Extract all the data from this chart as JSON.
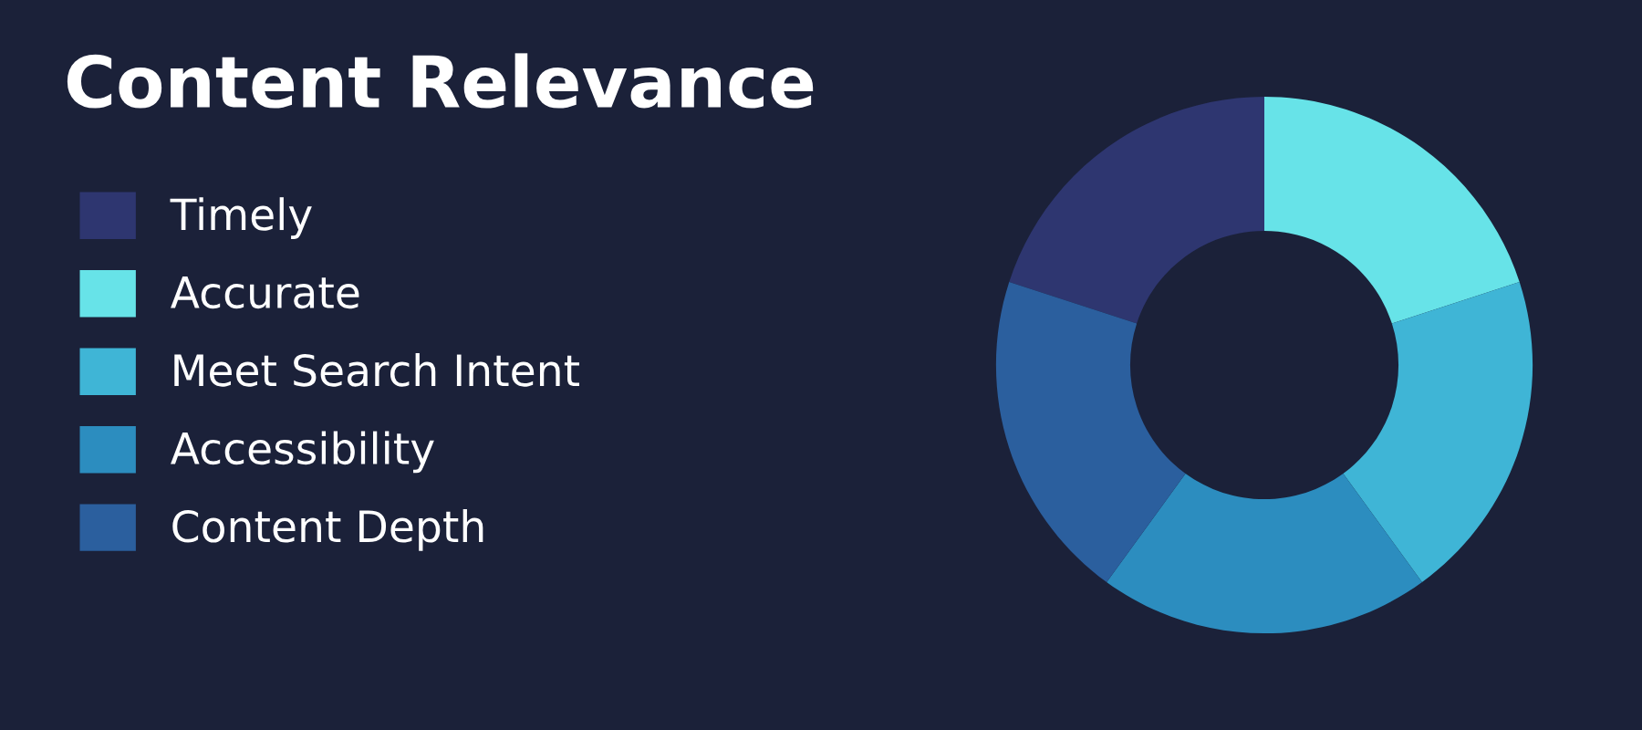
{
  "chart_data": {
    "type": "donut",
    "title": "Content Relevance",
    "categories": [
      "Timely",
      "Accurate",
      "Meet Search Intent",
      "Accessibility",
      "Content Depth"
    ],
    "values": [
      20,
      20,
      20,
      20,
      20
    ],
    "colors": [
      "#2e3670",
      "#67e3e8",
      "#3fb5d6",
      "#2c8dbf",
      "#2b5f9e"
    ],
    "legend": "left"
  }
}
